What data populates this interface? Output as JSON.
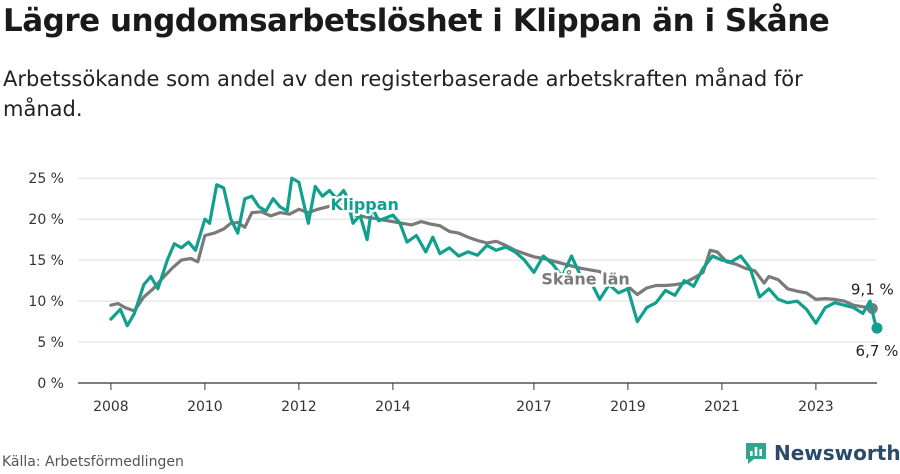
{
  "header": {
    "title": "Lägre ungdomsarbetslöshet i Klippan än i Skåne",
    "subtitle": "Arbetssökande som andel av den registerbaserade arbetskraften månad för månad."
  },
  "footer": {
    "source": "Källa: Arbetsförmedlingen",
    "brand": "Newsworthy"
  },
  "colors": {
    "klippan": "#11a08e",
    "skane": "#7a7a7a",
    "grid": "#dddddd",
    "axis": "#333333"
  },
  "chart_data": {
    "type": "line",
    "title": "Lägre ungdomsarbetslöshet i Klippan än i Skåne",
    "xlabel": "",
    "ylabel": "",
    "x_ticks": [
      2008,
      2010,
      2012,
      2014,
      2017,
      2019,
      2021,
      2023
    ],
    "y_ticks": [
      0,
      5,
      10,
      15,
      20,
      25
    ],
    "y_tick_labels": [
      "0 %",
      "5 %",
      "10 %",
      "15 %",
      "20 %",
      "25 %"
    ],
    "xlim": [
      2007.3,
      2024.3
    ],
    "ylim": [
      0,
      26
    ],
    "series": [
      {
        "name": "Skåne län",
        "label": "Skåne län",
        "end_value": 9.1,
        "end_label": "9,1 %",
        "points": [
          [
            2008.0,
            9.5
          ],
          [
            2008.15,
            9.7
          ],
          [
            2008.3,
            9.2
          ],
          [
            2008.5,
            8.8
          ],
          [
            2008.7,
            10.5
          ],
          [
            2008.9,
            11.5
          ],
          [
            2009.1,
            12.8
          ],
          [
            2009.3,
            14.0
          ],
          [
            2009.5,
            15.0
          ],
          [
            2009.7,
            15.2
          ],
          [
            2009.85,
            14.8
          ],
          [
            2010.0,
            18.0
          ],
          [
            2010.2,
            18.3
          ],
          [
            2010.4,
            18.8
          ],
          [
            2010.55,
            19.5
          ],
          [
            2010.7,
            19.6
          ],
          [
            2010.85,
            19.0
          ],
          [
            2011.0,
            20.8
          ],
          [
            2011.2,
            20.9
          ],
          [
            2011.4,
            20.4
          ],
          [
            2011.6,
            20.8
          ],
          [
            2011.8,
            20.6
          ],
          [
            2012.0,
            21.2
          ],
          [
            2012.2,
            20.8
          ],
          [
            2012.4,
            21.2
          ],
          [
            2012.6,
            21.5
          ],
          [
            2012.8,
            21.8
          ],
          [
            2013.0,
            22.0
          ],
          [
            2013.2,
            20.5
          ],
          [
            2014.4,
            19.3
          ],
          [
            2014.6,
            19.7
          ],
          [
            2014.8,
            19.4
          ],
          [
            2015.0,
            19.2
          ],
          [
            2015.2,
            18.5
          ],
          [
            2015.4,
            18.3
          ],
          [
            2015.6,
            17.8
          ],
          [
            2015.8,
            17.4
          ],
          [
            2016.0,
            17.1
          ],
          [
            2016.2,
            17.3
          ],
          [
            2016.4,
            16.8
          ],
          [
            2016.6,
            16.2
          ],
          [
            2016.8,
            15.8
          ],
          [
            2017.0,
            15.4
          ],
          [
            2017.2,
            15.2
          ],
          [
            2017.4,
            14.9
          ],
          [
            2017.6,
            14.6
          ],
          [
            2017.8,
            14.3
          ],
          [
            2018.0,
            14.0
          ],
          [
            2018.2,
            13.8
          ],
          [
            2018.4,
            13.6
          ],
          [
            2018.6,
            12.8
          ],
          [
            2018.8,
            12.3
          ],
          [
            2019.0,
            11.8
          ],
          [
            2019.2,
            10.8
          ],
          [
            2019.4,
            11.6
          ],
          [
            2019.6,
            11.9
          ],
          [
            2019.8,
            11.9
          ],
          [
            2020.0,
            12.0
          ],
          [
            2020.2,
            12.2
          ],
          [
            2020.4,
            12.8
          ],
          [
            2020.6,
            13.5
          ],
          [
            2020.75,
            16.2
          ],
          [
            2020.9,
            16.0
          ],
          [
            2021.1,
            14.8
          ],
          [
            2021.3,
            14.5
          ],
          [
            2021.5,
            14.0
          ],
          [
            2021.7,
            13.7
          ],
          [
            2021.9,
            12.2
          ],
          [
            2022.0,
            13.0
          ],
          [
            2022.2,
            12.6
          ],
          [
            2022.4,
            11.5
          ],
          [
            2022.6,
            11.2
          ],
          [
            2022.8,
            11.0
          ],
          [
            2023.0,
            10.2
          ],
          [
            2023.2,
            10.3
          ],
          [
            2023.4,
            10.2
          ],
          [
            2023.6,
            10.0
          ],
          [
            2023.8,
            9.5
          ],
          [
            2024.0,
            9.3
          ],
          [
            2024.2,
            9.1
          ]
        ]
      },
      {
        "name": "Klippan",
        "label": "Klippan",
        "end_value": 6.7,
        "end_label": "6,7 %",
        "points": [
          [
            2008.0,
            7.8
          ],
          [
            2008.2,
            9.0
          ],
          [
            2008.35,
            7.0
          ],
          [
            2008.5,
            8.5
          ],
          [
            2008.7,
            12.0
          ],
          [
            2008.85,
            13.0
          ],
          [
            2009.0,
            11.5
          ],
          [
            2009.2,
            15.0
          ],
          [
            2009.35,
            17.0
          ],
          [
            2009.5,
            16.5
          ],
          [
            2009.65,
            17.2
          ],
          [
            2009.8,
            16.2
          ],
          [
            2010.0,
            20.0
          ],
          [
            2010.1,
            19.5
          ],
          [
            2010.25,
            24.2
          ],
          [
            2010.4,
            23.8
          ],
          [
            2010.55,
            20.0
          ],
          [
            2010.7,
            18.3
          ],
          [
            2010.85,
            22.5
          ],
          [
            2011.0,
            22.8
          ],
          [
            2011.15,
            21.5
          ],
          [
            2011.3,
            21.0
          ],
          [
            2011.45,
            22.5
          ],
          [
            2011.6,
            21.5
          ],
          [
            2011.75,
            21.0
          ],
          [
            2011.85,
            25.0
          ],
          [
            2012.0,
            24.5
          ],
          [
            2012.2,
            19.5
          ],
          [
            2012.35,
            24.0
          ],
          [
            2012.5,
            22.8
          ],
          [
            2012.65,
            23.5
          ],
          [
            2012.8,
            22.5
          ],
          [
            2012.95,
            23.5
          ],
          [
            2013.0,
            23.0
          ],
          [
            2013.15,
            19.5
          ],
          [
            2013.3,
            20.5
          ],
          [
            2013.45,
            17.5
          ],
          [
            2013.55,
            21.5
          ],
          [
            2013.7,
            19.8
          ],
          [
            2014.0,
            20.5
          ],
          [
            2014.15,
            19.5
          ],
          [
            2014.3,
            17.2
          ],
          [
            2014.5,
            18.0
          ],
          [
            2014.7,
            16.0
          ],
          [
            2014.85,
            17.8
          ],
          [
            2015.0,
            15.8
          ],
          [
            2015.2,
            16.5
          ],
          [
            2015.4,
            15.5
          ],
          [
            2015.6,
            16.0
          ],
          [
            2015.8,
            15.6
          ],
          [
            2016.0,
            16.8
          ],
          [
            2016.2,
            16.2
          ],
          [
            2016.4,
            16.6
          ],
          [
            2016.6,
            16.0
          ],
          [
            2016.8,
            15.0
          ],
          [
            2017.0,
            13.5
          ],
          [
            2017.2,
            15.5
          ],
          [
            2017.4,
            14.5
          ],
          [
            2017.6,
            13.0
          ],
          [
            2017.8,
            15.5
          ],
          [
            2018.0,
            13.0
          ],
          [
            2018.2,
            12.5
          ],
          [
            2018.4,
            10.2
          ],
          [
            2018.6,
            12.0
          ],
          [
            2018.8,
            11.0
          ],
          [
            2019.0,
            11.5
          ],
          [
            2019.2,
            7.5
          ],
          [
            2019.4,
            9.2
          ],
          [
            2019.6,
            9.8
          ],
          [
            2019.8,
            11.3
          ],
          [
            2020.0,
            10.7
          ],
          [
            2020.2,
            12.5
          ],
          [
            2020.4,
            11.8
          ],
          [
            2020.6,
            14.0
          ],
          [
            2020.8,
            15.5
          ],
          [
            2021.0,
            15.0
          ],
          [
            2021.2,
            14.8
          ],
          [
            2021.4,
            15.5
          ],
          [
            2021.6,
            14.0
          ],
          [
            2021.8,
            10.5
          ],
          [
            2022.0,
            11.5
          ],
          [
            2022.2,
            10.2
          ],
          [
            2022.4,
            9.8
          ],
          [
            2022.6,
            10.0
          ],
          [
            2022.8,
            9.0
          ],
          [
            2023.0,
            7.3
          ],
          [
            2023.2,
            9.2
          ],
          [
            2023.4,
            9.8
          ],
          [
            2023.6,
            9.5
          ],
          [
            2023.8,
            9.2
          ],
          [
            2024.0,
            8.5
          ],
          [
            2024.15,
            10.0
          ],
          [
            2024.25,
            7.5
          ],
          [
            2024.3,
            6.7
          ]
        ]
      }
    ],
    "legend": "inline-labels"
  }
}
